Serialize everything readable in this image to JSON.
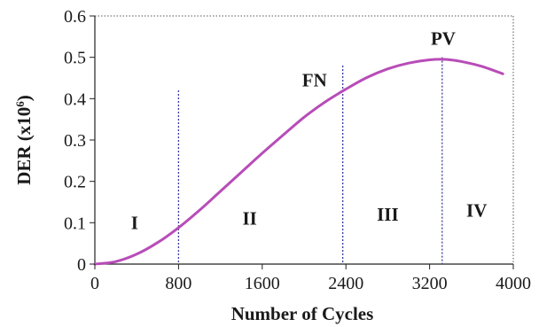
{
  "chart_data": {
    "type": "line",
    "xlabel": "Number of Cycles",
    "ylabel_main": "DER (x10",
    "ylabel_sup": "6",
    "ylabel_close": ")",
    "xlim": [
      0,
      4000
    ],
    "ylim": [
      0,
      0.6
    ],
    "x_ticks": [
      0,
      800,
      1600,
      2400,
      3200,
      4000
    ],
    "x_tick_labels": [
      "0",
      "800",
      "1600",
      "2400",
      "3200",
      "4000"
    ],
    "y_ticks": [
      0,
      0.1,
      0.2,
      0.3,
      0.4,
      0.5,
      0.6
    ],
    "y_tick_labels": [
      "0",
      "0.1",
      "0.2",
      "0.3",
      "0.4",
      "0.5",
      "0.6"
    ],
    "grid": false,
    "series": [
      {
        "color": "#b84cb8",
        "x": [
          0,
          200,
          400,
          600,
          800,
          1000,
          1200,
          1400,
          1600,
          1800,
          2000,
          2200,
          2400,
          2600,
          2800,
          3000,
          3200,
          3350,
          3500,
          3700,
          3900
        ],
        "y": [
          0,
          0.006,
          0.024,
          0.052,
          0.088,
          0.13,
          0.176,
          0.222,
          0.268,
          0.312,
          0.355,
          0.392,
          0.423,
          0.451,
          0.472,
          0.486,
          0.494,
          0.495,
          0.49,
          0.478,
          0.46
        ]
      }
    ],
    "vlines": [
      {
        "x": 800,
        "top": 0.42
      },
      {
        "x": 2370,
        "top": 0.48
      },
      {
        "x": 3320,
        "top": 0.5
      }
    ],
    "vline_color": "#3b3b9e",
    "regions": [
      {
        "label": "I",
        "x": 380,
        "y": 0.085
      },
      {
        "label": "II",
        "x": 1480,
        "y": 0.095
      },
      {
        "label": "III",
        "x": 2800,
        "y": 0.105
      },
      {
        "label": "IV",
        "x": 3650,
        "y": 0.115
      }
    ],
    "annotations": [
      {
        "label": "FN",
        "x": 2100,
        "y": 0.43
      },
      {
        "label": "PV",
        "x": 3330,
        "y": 0.53
      }
    ]
  }
}
